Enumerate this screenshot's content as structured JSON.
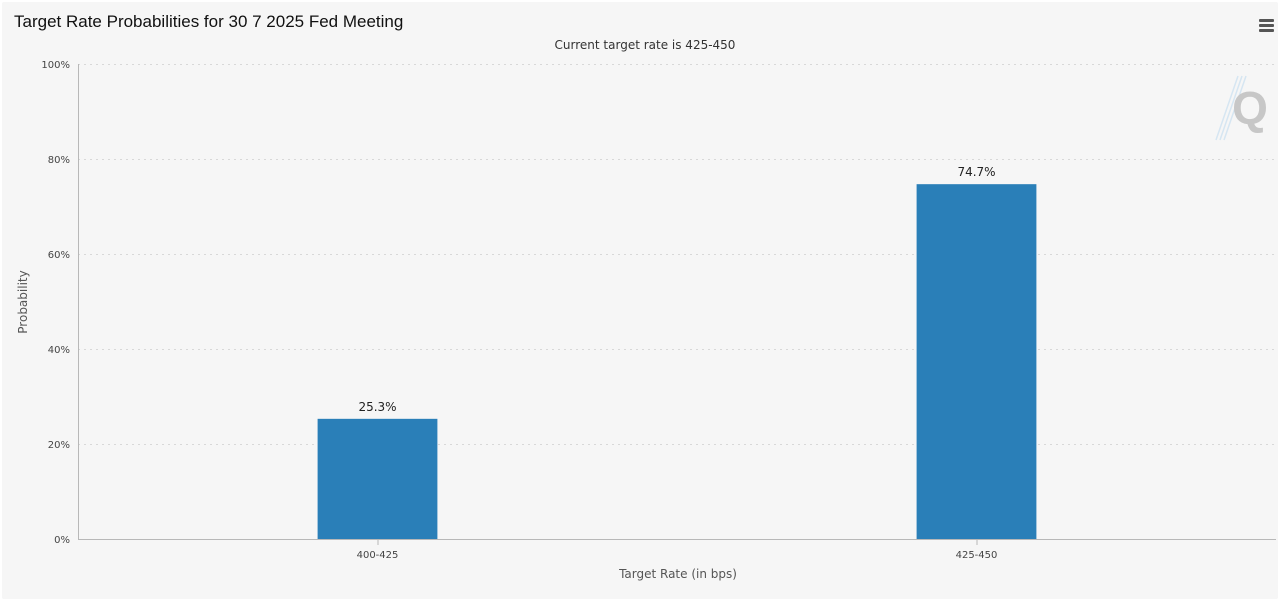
{
  "page": {
    "title": "Target Rate Probabilities for 30 7 2025 Fed Meeting",
    "menu_icon": "hamburger-menu-icon",
    "watermark_icon": "quikstrike-q-logo-icon"
  },
  "chart_data": {
    "type": "bar",
    "title": "",
    "subtitle": "Current target rate is 425-450",
    "xlabel": "Target Rate (in bps)",
    "ylabel": "Probability",
    "categories": [
      "400-425",
      "425-450"
    ],
    "values": [
      25.3,
      74.7
    ],
    "data_labels": [
      "25.3%",
      "74.7%"
    ],
    "ylim": [
      0,
      100
    ],
    "yticks": [
      0,
      20,
      40,
      60,
      80,
      100
    ],
    "ytick_labels": [
      "0%",
      "20%",
      "40%",
      "60%",
      "80%",
      "100%"
    ],
    "grid": true,
    "legend": "none",
    "colors": {
      "bar": "#2a7fb8",
      "grid": "#d8d8d8",
      "axis": "#b8b8b8"
    }
  }
}
